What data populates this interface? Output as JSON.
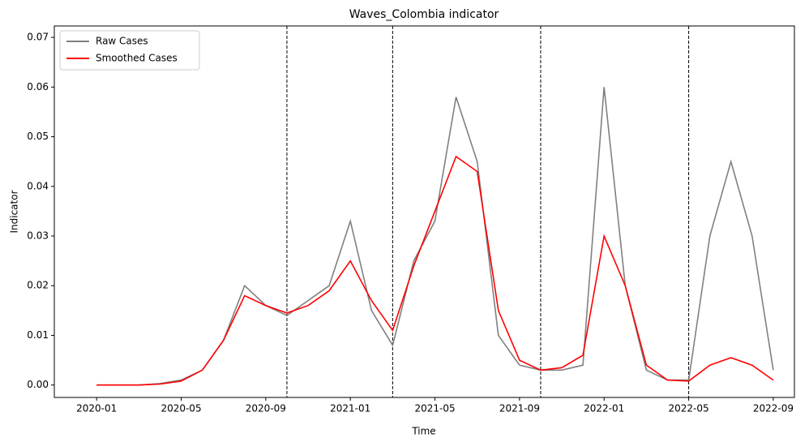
{
  "chart_data": {
    "type": "line",
    "title": "Waves_Colombia indicator",
    "x_label": "Time",
    "y_label": "Indicator",
    "x": [
      "2020-01",
      "2020-02",
      "2020-03",
      "2020-04",
      "2020-05",
      "2020-06",
      "2020-07",
      "2020-08",
      "2020-09",
      "2020-10",
      "2020-11",
      "2020-12",
      "2021-01",
      "2021-02",
      "2021-03",
      "2021-04",
      "2021-05",
      "2021-06",
      "2021-07",
      "2021-08",
      "2021-09",
      "2021-10",
      "2021-11",
      "2021-12",
      "2022-01",
      "2022-02",
      "2022-03",
      "2022-04",
      "2022-05",
      "2022-06",
      "2022-07",
      "2022-08",
      "2022-09"
    ],
    "series": [
      {
        "name": "Raw Cases",
        "color": "#808080",
        "values": [
          0,
          0,
          0,
          0.0003,
          0.001,
          0.003,
          0.009,
          0.02,
          0.016,
          0.014,
          0.017,
          0.02,
          0.033,
          0.015,
          0.008,
          0.025,
          0.033,
          0.058,
          0.045,
          0.01,
          0.004,
          0.003,
          0.003,
          0.004,
          0.06,
          0.02,
          0.003,
          0.001,
          0.001,
          0.03,
          0.045,
          0.03,
          0.003
        ]
      },
      {
        "name": "Smoothed Cases",
        "color": "#ff0000",
        "values": [
          0,
          0,
          0,
          0.0002,
          0.0008,
          0.003,
          0.009,
          0.018,
          0.016,
          0.0145,
          0.016,
          0.019,
          0.025,
          0.017,
          0.011,
          0.024,
          0.035,
          0.046,
          0.043,
          0.015,
          0.005,
          0.003,
          0.0035,
          0.006,
          0.03,
          0.02,
          0.004,
          0.001,
          0.0008,
          0.004,
          0.0055,
          0.004,
          0.001
        ]
      }
    ],
    "vlines": [
      "2020-10",
      "2021-03",
      "2021-10",
      "2022-05"
    ],
    "xlim": [
      "2019-11",
      "2022-10"
    ],
    "ylim": [
      -0.0025,
      0.0723
    ],
    "xticks": [
      "2020-01",
      "2020-05",
      "2020-09",
      "2021-01",
      "2021-05",
      "2021-09",
      "2022-01",
      "2022-05",
      "2022-09"
    ],
    "yticks": [
      {
        "value": 0,
        "label": "0.00"
      },
      0.01,
      0.02,
      0.03,
      0.04,
      0.05,
      0.06,
      0.07
    ],
    "legend": "upper left"
  }
}
